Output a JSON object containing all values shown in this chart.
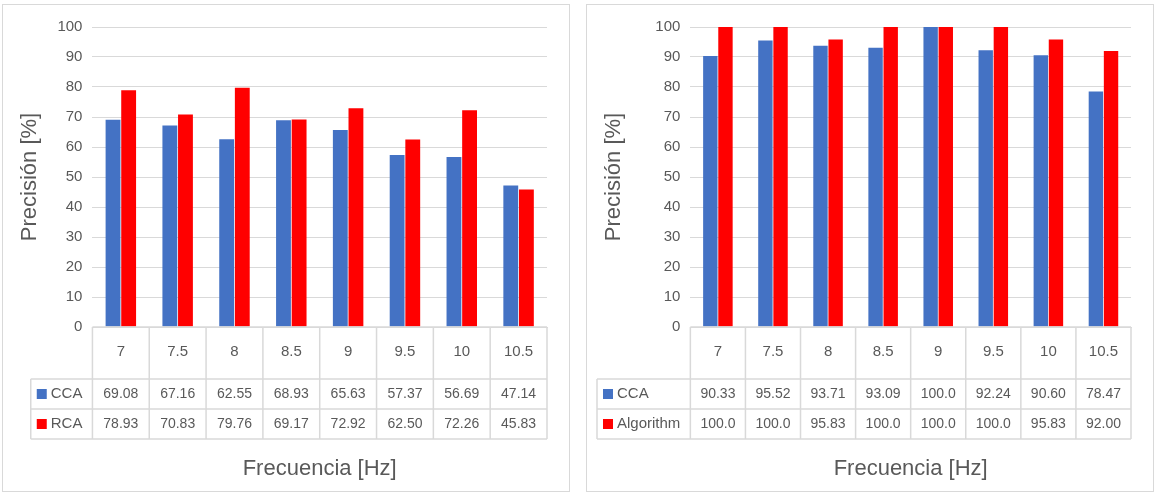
{
  "chart_data": [
    {
      "type": "bar",
      "xlabel": "Frecuencia [Hz]",
      "ylabel": "Precisión [%]",
      "categories": [
        "7",
        "7.5",
        "8",
        "8.5",
        "9",
        "9.5",
        "10",
        "10.5"
      ],
      "ylim": [
        0,
        100
      ],
      "yticks": [
        0,
        10,
        20,
        30,
        40,
        50,
        60,
        70,
        80,
        90,
        100
      ],
      "grid": "y",
      "legend": "bottom",
      "series": [
        {
          "name": "CCA",
          "color": "#4472c4",
          "values": [
            69.08,
            67.16,
            62.55,
            68.93,
            65.63,
            57.37,
            56.69,
            47.14
          ],
          "value_labels": [
            "69.08",
            "67.16",
            "62.55",
            "68.93",
            "65.63",
            "57.37",
            "56.69",
            "47.14"
          ]
        },
        {
          "name": "RCA",
          "color": "#ff0000",
          "values": [
            78.93,
            70.83,
            79.76,
            69.17,
            72.92,
            62.5,
            72.26,
            45.83
          ],
          "value_labels": [
            "78.93",
            "70.83",
            "79.76",
            "69.17",
            "72.92",
            "62.50",
            "72.26",
            "45.83"
          ]
        }
      ]
    },
    {
      "type": "bar",
      "xlabel": "Frecuencia [Hz]",
      "ylabel": "Precisión [%]",
      "categories": [
        "7",
        "7.5",
        "8",
        "8.5",
        "9",
        "9.5",
        "10",
        "10.5"
      ],
      "ylim": [
        0,
        100
      ],
      "yticks": [
        0,
        10,
        20,
        30,
        40,
        50,
        60,
        70,
        80,
        90,
        100
      ],
      "grid": "y",
      "legend": "bottom",
      "series": [
        {
          "name": "CCA",
          "color": "#4472c4",
          "values": [
            90.33,
            95.52,
            93.71,
            93.09,
            100,
            92.24,
            90.6,
            78.47
          ],
          "value_labels": [
            "90.33",
            "95.52",
            "93.71",
            "93.09",
            "100.0",
            "92.24",
            "90.60",
            "78.47"
          ]
        },
        {
          "name": "Algorithm",
          "color": "#ff0000",
          "values": [
            100,
            100,
            95.83,
            100,
            100,
            100,
            95.83,
            92
          ],
          "value_labels": [
            "100.0",
            "100.0",
            "95.83",
            "100.0",
            "100.0",
            "100.0",
            "95.83",
            "92.00"
          ]
        }
      ]
    }
  ]
}
